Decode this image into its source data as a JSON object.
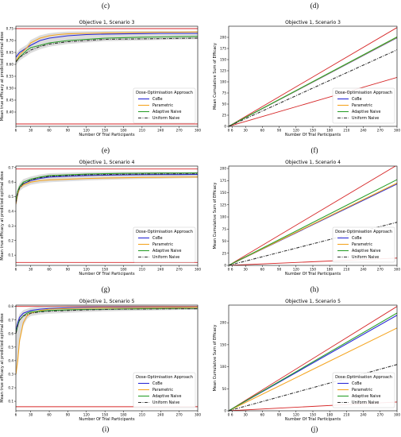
{
  "colors": {
    "CoBe": "#2b2bd6",
    "Parametric": "#f5a623",
    "Adaptive Naive": "#2ca02c",
    "Uniform Naive": "#333333",
    "bounds": "#d62728"
  },
  "panel_letters": [
    "(c)",
    "(d)",
    "(e)",
    "(f)",
    "(g)",
    "(h)",
    "(i)",
    "(j)"
  ],
  "chart_data": [
    {
      "type": "line",
      "title": "Objective 1, Scenario 3",
      "xlabel": "Number Of Trial Participants",
      "ylabel": "Mean true efficacy at predicted optimal dose",
      "xlim": [
        6,
        300
      ],
      "ylim": [
        0.34,
        0.76
      ],
      "xticks": [
        6,
        30,
        60,
        90,
        120,
        150,
        180,
        210,
        240,
        270,
        300
      ],
      "yticks": [
        0.4,
        0.45,
        0.5,
        0.55,
        0.6,
        0.65,
        0.7,
        0.75
      ],
      "ytick_labels": [
        "0.40",
        "0.45",
        "0.50",
        "0.55",
        "0.60",
        "0.65",
        "0.70",
        "0.75"
      ],
      "legend": {
        "title": "Dose-Optimisation Approach",
        "location": "lower-right"
      },
      "grid": false,
      "band": true,
      "hlines": [
        0.75,
        0.35
      ],
      "x": [
        6,
        12,
        24,
        30,
        45,
        60,
        75,
        90,
        120,
        150,
        180,
        210,
        240,
        270,
        300
      ],
      "series": [
        {
          "name": "CoBe",
          "values": [
            0.63,
            0.65,
            0.67,
            0.68,
            0.7,
            0.71,
            0.715,
            0.72,
            0.725,
            0.727,
            0.728,
            0.729,
            0.73,
            0.73,
            0.73
          ]
        },
        {
          "name": "Parametric",
          "values": [
            0.61,
            0.64,
            0.67,
            0.69,
            0.71,
            0.72,
            0.725,
            0.728,
            0.73,
            0.732,
            0.733,
            0.734,
            0.735,
            0.735,
            0.736
          ]
        },
        {
          "name": "Adaptive Naive",
          "values": [
            0.61,
            0.63,
            0.66,
            0.67,
            0.68,
            0.69,
            0.695,
            0.7,
            0.705,
            0.71,
            0.712,
            0.714,
            0.715,
            0.716,
            0.717
          ]
        },
        {
          "name": "Uniform Naive",
          "values": [
            0.61,
            0.63,
            0.65,
            0.66,
            0.675,
            0.685,
            0.69,
            0.695,
            0.7,
            0.705,
            0.706,
            0.707,
            0.708,
            0.709,
            0.71
          ]
        }
      ]
    },
    {
      "type": "line",
      "title": "Objective 1, Scenario 3",
      "xlabel": "Number Of Trial Participants",
      "ylabel": "Mean Cumulative Sum of Efficacy",
      "xlim": [
        0,
        300
      ],
      "ylim": [
        0,
        225
      ],
      "xticks": [
        0,
        6,
        30,
        60,
        90,
        120,
        150,
        180,
        210,
        240,
        270,
        300
      ],
      "yticks": [
        0,
        25,
        50,
        75,
        100,
        125,
        150,
        175,
        200
      ],
      "ytick_labels": [
        "0",
        "25",
        "50",
        "75",
        "100",
        "125",
        "150",
        "175",
        "200"
      ],
      "legend": {
        "title": "Dose-Optimisation Approach",
        "location": "lower-right"
      },
      "grid": false,
      "band": false,
      "bounds": [
        [
          [
            0,
            0
          ],
          [
            300,
            222
          ]
        ],
        [
          [
            0,
            0
          ],
          [
            300,
            110
          ]
        ]
      ],
      "x": [
        0,
        300
      ],
      "series": [
        {
          "name": "CoBe",
          "values": [
            0,
            199
          ]
        },
        {
          "name": "Parametric",
          "values": [
            0,
            200
          ]
        },
        {
          "name": "Adaptive Naive",
          "values": [
            0,
            201
          ]
        },
        {
          "name": "Uniform Naive",
          "values": [
            0,
            172
          ]
        }
      ]
    },
    {
      "type": "line",
      "title": "Objective 1, Scenario 4",
      "xlabel": "Number Of Trial Participants",
      "ylabel": "Mean true efficacy at predicted optimal dose",
      "xlim": [
        6,
        300
      ],
      "ylim": [
        0.03,
        0.71
      ],
      "xticks": [
        6,
        30,
        60,
        90,
        120,
        150,
        180,
        210,
        240,
        270,
        300
      ],
      "yticks": [
        0.1,
        0.2,
        0.3,
        0.4,
        0.5,
        0.6,
        0.7
      ],
      "ytick_labels": [
        "0.1",
        "0.2",
        "0.3",
        "0.4",
        "0.5",
        "0.6",
        "0.7"
      ],
      "legend": {
        "title": "Dose-Optimisation Approach",
        "location": "lower-right"
      },
      "grid": false,
      "band": true,
      "hlines": [
        0.69,
        0.05
      ],
      "x": [
        6,
        9,
        12,
        18,
        24,
        30,
        45,
        60,
        90,
        120,
        150,
        180,
        210,
        240,
        270,
        300
      ],
      "series": [
        {
          "name": "CoBe",
          "values": [
            0.45,
            0.52,
            0.56,
            0.59,
            0.6,
            0.61,
            0.625,
            0.635,
            0.64,
            0.645,
            0.648,
            0.65,
            0.651,
            0.652,
            0.652,
            0.653
          ]
        },
        {
          "name": "Parametric",
          "values": [
            0.45,
            0.52,
            0.56,
            0.58,
            0.59,
            0.6,
            0.61,
            0.615,
            0.62,
            0.625,
            0.628,
            0.63,
            0.632,
            0.633,
            0.634,
            0.635
          ]
        },
        {
          "name": "Adaptive Naive",
          "values": [
            0.47,
            0.54,
            0.57,
            0.6,
            0.61,
            0.62,
            0.635,
            0.645,
            0.65,
            0.655,
            0.658,
            0.66,
            0.661,
            0.662,
            0.662,
            0.663
          ]
        },
        {
          "name": "Uniform Naive",
          "values": [
            0.46,
            0.53,
            0.56,
            0.59,
            0.6,
            0.615,
            0.63,
            0.64,
            0.645,
            0.65,
            0.652,
            0.654,
            0.655,
            0.656,
            0.657,
            0.657
          ]
        }
      ]
    },
    {
      "type": "line",
      "title": "Objective 1, Scenario 4",
      "xlabel": "Number Of Trial Participants",
      "ylabel": "Mean Cumulative Sum of Efficacy",
      "xlim": [
        0,
        300
      ],
      "ylim": [
        0,
        205
      ],
      "xticks": [
        0,
        6,
        30,
        60,
        90,
        120,
        150,
        180,
        210,
        240,
        270,
        300
      ],
      "yticks": [
        0,
        25,
        50,
        75,
        100,
        125,
        150,
        175,
        200
      ],
      "ytick_labels": [
        "0",
        "25",
        "50",
        "75",
        "100",
        "125",
        "150",
        "175",
        "200"
      ],
      "legend": {
        "title": "Dose-Optimisation Approach",
        "location": "lower-right"
      },
      "grid": false,
      "band": false,
      "bounds": [
        [
          [
            0,
            0
          ],
          [
            300,
            207
          ]
        ],
        [
          [
            0,
            0
          ],
          [
            300,
            15
          ]
        ]
      ],
      "x": [
        0,
        300
      ],
      "series": [
        {
          "name": "CoBe",
          "values": [
            0,
            168
          ]
        },
        {
          "name": "Parametric",
          "values": [
            0,
            170
          ]
        },
        {
          "name": "Adaptive Naive",
          "values": [
            0,
            177
          ]
        },
        {
          "name": "Uniform Naive",
          "values": [
            0,
            89
          ]
        }
      ]
    },
    {
      "type": "line",
      "title": "Objective 1, Scenario 5",
      "xlabel": "Number Of Trial Participants",
      "ylabel": "Mean true efficacy at predicted optimal dose",
      "xlim": [
        6,
        300
      ],
      "ylim": [
        0.03,
        0.81
      ],
      "xticks": [
        6,
        30,
        60,
        90,
        120,
        150,
        180,
        210,
        240,
        270,
        300
      ],
      "yticks": [
        0.1,
        0.2,
        0.3,
        0.4,
        0.5,
        0.6,
        0.7,
        0.8
      ],
      "ytick_labels": [
        "0.1",
        "0.2",
        "0.3",
        "0.4",
        "0.5",
        "0.6",
        "0.7",
        "0.8"
      ],
      "legend": {
        "title": "Dose-Optimisation Approach",
        "location": "lower-right"
      },
      "grid": false,
      "band": true,
      "hlines": [
        0.8,
        0.06
      ],
      "x": [
        6,
        9,
        12,
        18,
        24,
        30,
        45,
        60,
        90,
        120,
        150,
        180,
        210,
        240,
        270,
        300
      ],
      "series": [
        {
          "name": "CoBe",
          "values": [
            0.62,
            0.68,
            0.72,
            0.75,
            0.76,
            0.77,
            0.78,
            0.785,
            0.79,
            0.792,
            0.793,
            0.794,
            0.795,
            0.795,
            0.795,
            0.796
          ]
        },
        {
          "name": "Parametric",
          "values": [
            0.3,
            0.4,
            0.55,
            0.68,
            0.73,
            0.75,
            0.77,
            0.78,
            0.785,
            0.788,
            0.79,
            0.791,
            0.792,
            0.793,
            0.793,
            0.794
          ]
        },
        {
          "name": "Adaptive Naive",
          "values": [
            0.6,
            0.66,
            0.7,
            0.73,
            0.75,
            0.76,
            0.765,
            0.77,
            0.775,
            0.778,
            0.78,
            0.782,
            0.783,
            0.784,
            0.785,
            0.785
          ]
        },
        {
          "name": "Uniform Naive",
          "values": [
            0.6,
            0.66,
            0.7,
            0.73,
            0.74,
            0.75,
            0.76,
            0.765,
            0.77,
            0.775,
            0.778,
            0.78,
            0.781,
            0.782,
            0.783,
            0.783
          ]
        }
      ]
    },
    {
      "type": "line",
      "title": "Objective 1, Scenario 5",
      "xlabel": "Number Of Trial Participants",
      "ylabel": "Mean Cumulative Sum of Efficacy",
      "xlim": [
        0,
        300
      ],
      "ylim": [
        0,
        240
      ],
      "xticks": [
        0,
        6,
        30,
        60,
        90,
        120,
        150,
        180,
        210,
        240,
        270,
        300
      ],
      "yticks": [
        0,
        50,
        100,
        150,
        200
      ],
      "ytick_labels": [
        "0",
        "50",
        "100",
        "150",
        "200"
      ],
      "legend": {
        "title": "Dose-Optimisation Approach",
        "location": "lower-right"
      },
      "grid": false,
      "band": false,
      "bounds": [
        [
          [
            0,
            0
          ],
          [
            300,
            237
          ]
        ],
        [
          [
            0,
            0
          ],
          [
            300,
            20
          ]
        ]
      ],
      "x": [
        0,
        300
      ],
      "series": [
        {
          "name": "CoBe",
          "values": [
            0,
            217
          ]
        },
        {
          "name": "Parametric",
          "values": [
            0,
            188
          ]
        },
        {
          "name": "Adaptive Naive",
          "values": [
            0,
            222
          ]
        },
        {
          "name": "Uniform Naive",
          "values": [
            0,
            105
          ]
        }
      ]
    }
  ]
}
